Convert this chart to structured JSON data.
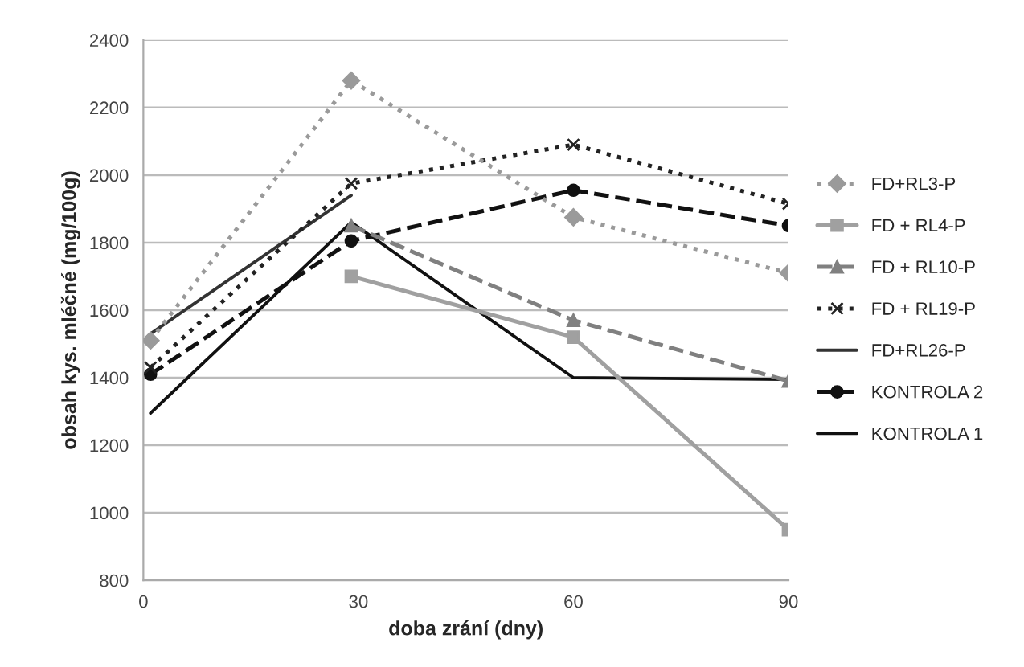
{
  "chart_data": {
    "type": "line",
    "xlabel": "doba zrání (dny)",
    "ylabel": "obsah kys. mléčné (mg/100g)",
    "x": [
      1,
      29,
      60,
      90
    ],
    "xlim": [
      0,
      90
    ],
    "xticks": [
      0,
      30,
      60,
      90
    ],
    "ylim": [
      800,
      2400
    ],
    "yticks": [
      800,
      1000,
      1200,
      1400,
      1600,
      1800,
      2000,
      2200,
      2400
    ],
    "grid": "y",
    "legend": "right",
    "series": [
      {
        "name": "FD+RL3-P",
        "color": "#9a9a9a",
        "marker": "diamond",
        "line_style": "dotted",
        "values": [
          1510,
          2280,
          1875,
          1710
        ]
      },
      {
        "name": "FD + RL4-P",
        "color": "#a0a0a0",
        "marker": "square",
        "line_style": "solid",
        "values": [
          null,
          1700,
          1520,
          950
        ]
      },
      {
        "name": "FD + RL10-P",
        "color": "#808080",
        "marker": "triangle",
        "line_style": "dashed",
        "values": [
          null,
          1850,
          1570,
          1390
        ]
      },
      {
        "name": "FD + RL19-P",
        "color": "#222222",
        "marker": "cross",
        "line_style": "dotted",
        "values": [
          1430,
          1975,
          2090,
          1915
        ]
      },
      {
        "name": "FD+RL26-P",
        "color": "#333333",
        "marker": "none",
        "line_style": "solid",
        "values": [
          1530,
          1940,
          null,
          null
        ]
      },
      {
        "name": "KONTROLA 2",
        "color": "#111111",
        "marker": "circle",
        "line_style": "dashed",
        "values": [
          1410,
          1805,
          1955,
          1850
        ]
      },
      {
        "name": "KONTROLA 1",
        "color": "#111111",
        "marker": "none",
        "line_style": "solid",
        "values": [
          1295,
          1860,
          1400,
          1395
        ]
      }
    ]
  }
}
